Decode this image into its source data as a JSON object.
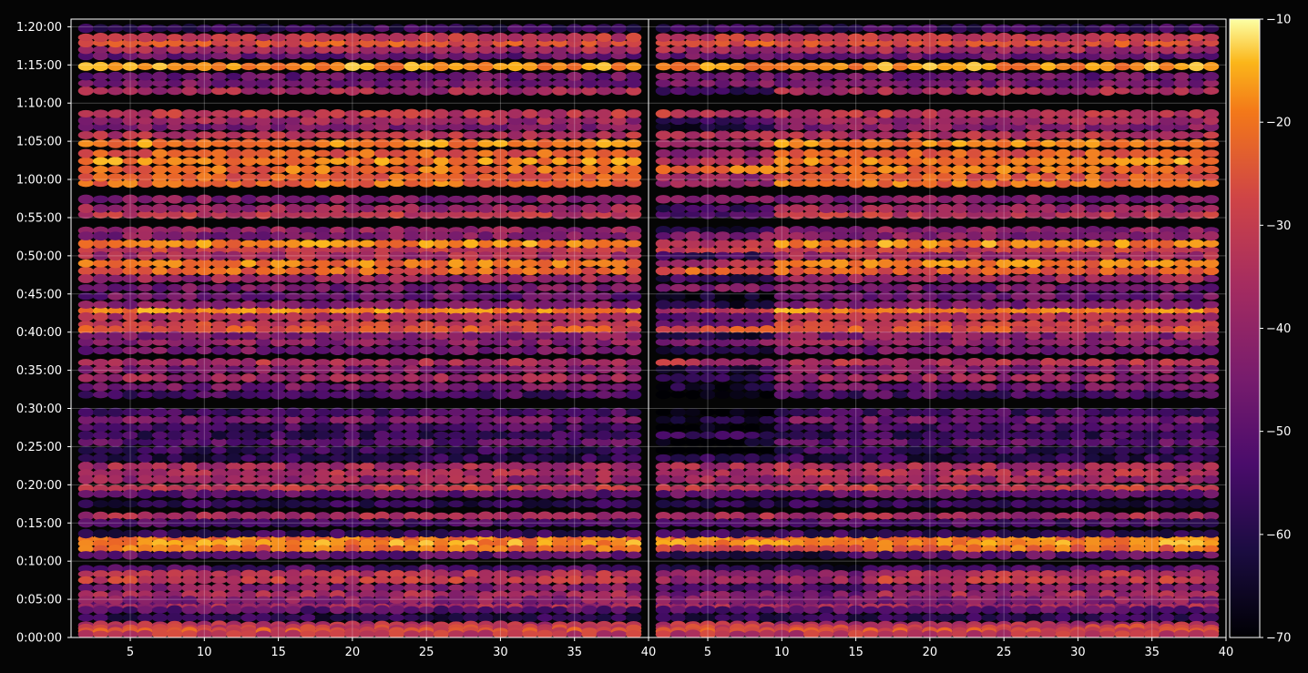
{
  "chart_data": {
    "type": "heatmap",
    "title": "",
    "xlabel": "",
    "ylabel": "",
    "grid": true,
    "colormap": "inferno",
    "panels": [
      {
        "name": "left",
        "xlim": [
          1,
          40
        ],
        "x_ticks": [
          5,
          10,
          15,
          20,
          25,
          30,
          35,
          40
        ],
        "note_data_start_x": 2
      },
      {
        "name": "right",
        "xlim": [
          1,
          40
        ],
        "x_ticks": [
          5,
          10,
          15,
          20,
          25,
          30,
          35,
          40
        ],
        "note_data_start_x": 2
      }
    ],
    "y_ticks": [
      "0:00:00",
      "0:05:00",
      "0:10:00",
      "0:15:00",
      "0:20:00",
      "0:25:00",
      "0:30:00",
      "0:35:00",
      "0:40:00",
      "0:45:00",
      "0:50:00",
      "0:55:00",
      "1:00:00",
      "1:05:00",
      "1:10:00",
      "1:15:00",
      "1:20:00"
    ],
    "ylim_seconds": [
      0,
      4860
    ],
    "colorbar": {
      "ticks": [
        -10,
        -20,
        -30,
        -40,
        -50,
        -60,
        -70
      ],
      "tick_labels": [
        "−10",
        "−20",
        "−30",
        "−40",
        "−50",
        "−60",
        "−70"
      ],
      "range": [
        -70,
        -10
      ]
    },
    "bands": [
      {
        "y": 4.4,
        "v": -55
      },
      {
        "y": 4.0,
        "v": -40
      },
      {
        "y": 3.6,
        "v": -52
      },
      {
        "y": 2.6,
        "v": -60
      },
      {
        "y": 1.6,
        "v": -38
      },
      {
        "y": 1.2,
        "v": -34
      },
      {
        "y": 0.8,
        "v": -30
      },
      {
        "y": 0.4,
        "v": -36
      },
      {
        "y": 9.0,
        "v": -55
      },
      {
        "y": 8.3,
        "v": -38
      },
      {
        "y": 7.5,
        "v": -35
      },
      {
        "y": 6.5,
        "v": -46
      },
      {
        "y": 5.6,
        "v": -40
      },
      {
        "y": 4.9,
        "v": -45
      },
      {
        "y": 12.9,
        "v": -24
      },
      {
        "y": 12.3,
        "v": -21
      },
      {
        "y": 11.6,
        "v": -26
      },
      {
        "y": 10.8,
        "v": -52
      },
      {
        "y": 15.9,
        "v": -40
      },
      {
        "y": 15.0,
        "v": -55
      },
      {
        "y": 13.6,
        "v": -58
      },
      {
        "y": 19.5,
        "v": -35
      },
      {
        "y": 18.8,
        "v": -52
      },
      {
        "y": 17.5,
        "v": -60
      },
      {
        "y": 22.4,
        "v": -40
      },
      {
        "y": 21.5,
        "v": -38
      },
      {
        "y": 20.7,
        "v": -42
      },
      {
        "y": 25.6,
        "v": -52
      },
      {
        "y": 24.5,
        "v": -58
      },
      {
        "y": 23.5,
        "v": -60
      },
      {
        "y": 28.5,
        "v": -48
      },
      {
        "y": 27.5,
        "v": -55
      },
      {
        "y": 26.5,
        "v": -58
      },
      {
        "y": 32.8,
        "v": -48
      },
      {
        "y": 31.8,
        "v": -55
      },
      {
        "y": 29.5,
        "v": -56
      },
      {
        "y": 36.0,
        "v": -38
      },
      {
        "y": 35.1,
        "v": -46
      },
      {
        "y": 34.0,
        "v": -42
      },
      {
        "y": 38.7,
        "v": -44
      },
      {
        "y": 37.6,
        "v": -48
      },
      {
        "y": 41.0,
        "v": -34
      },
      {
        "y": 40.3,
        "v": -30
      },
      {
        "y": 39.5,
        "v": -45
      },
      {
        "y": 42.8,
        "v": -22
      },
      {
        "y": 42.0,
        "v": -38
      },
      {
        "y": 45.8,
        "v": -48
      },
      {
        "y": 44.7,
        "v": -50
      },
      {
        "y": 43.6,
        "v": -46
      },
      {
        "y": 48.0,
        "v": -28
      },
      {
        "y": 49.0,
        "v": -24
      },
      {
        "y": 47.0,
        "v": -42
      },
      {
        "y": 50.7,
        "v": -34
      },
      {
        "y": 51.6,
        "v": -22
      },
      {
        "y": 50.0,
        "v": -40
      },
      {
        "y": 53.3,
        "v": -44
      },
      {
        "y": 52.6,
        "v": -46
      },
      {
        "y": 55.4,
        "v": -36
      },
      {
        "y": 56.2,
        "v": -42
      },
      {
        "y": 57.4,
        "v": -46
      },
      {
        "y": 59.5,
        "v": -25
      },
      {
        "y": 60.3,
        "v": -28
      },
      {
        "y": 61.3,
        "v": -26
      },
      {
        "y": 62.4,
        "v": -22
      },
      {
        "y": 63.4,
        "v": -28
      },
      {
        "y": 64.7,
        "v": -22
      },
      {
        "y": 65.8,
        "v": -38
      },
      {
        "y": 66.9,
        "v": -46
      },
      {
        "y": 67.7,
        "v": -42
      },
      {
        "y": 68.6,
        "v": -36
      },
      {
        "y": 71.6,
        "v": -40
      },
      {
        "y": 72.6,
        "v": -48
      },
      {
        "y": 73.5,
        "v": -50
      },
      {
        "y": 74.8,
        "v": -20
      },
      {
        "y": 76.2,
        "v": -50
      },
      {
        "y": 77.0,
        "v": -40
      },
      {
        "y": 77.9,
        "v": -30
      },
      {
        "y": 78.6,
        "v": -36
      },
      {
        "y": 79.8,
        "v": -58
      }
    ]
  }
}
